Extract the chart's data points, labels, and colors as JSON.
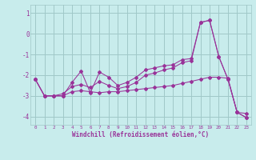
{
  "xlabel": "Windchill (Refroidissement éolien,°C)",
  "background_color": "#c8ecec",
  "grid_color": "#a0c8c8",
  "line_color": "#993399",
  "xlim": [
    -0.5,
    23.5
  ],
  "ylim": [
    -4.4,
    1.4
  ],
  "yticks": [
    1,
    0,
    -1,
    -2,
    -3,
    -4
  ],
  "xticks": [
    0,
    1,
    2,
    3,
    4,
    5,
    6,
    7,
    8,
    9,
    10,
    11,
    12,
    13,
    14,
    15,
    16,
    17,
    18,
    19,
    20,
    21,
    22,
    23
  ],
  "series1": [
    [
      0,
      -2.2
    ],
    [
      1,
      -3.0
    ],
    [
      2,
      -3.0
    ],
    [
      3,
      -3.0
    ],
    [
      4,
      -2.35
    ],
    [
      5,
      -1.8
    ],
    [
      6,
      -2.85
    ],
    [
      7,
      -1.85
    ],
    [
      8,
      -2.1
    ],
    [
      9,
      -2.5
    ],
    [
      10,
      -2.35
    ],
    [
      11,
      -2.1
    ],
    [
      12,
      -1.75
    ],
    [
      13,
      -1.65
    ],
    [
      14,
      -1.55
    ],
    [
      15,
      -1.5
    ],
    [
      16,
      -1.25
    ],
    [
      17,
      -1.2
    ],
    [
      18,
      0.55
    ],
    [
      19,
      0.65
    ],
    [
      20,
      -1.1
    ],
    [
      21,
      -2.2
    ],
    [
      22,
      -3.8
    ],
    [
      23,
      -3.85
    ]
  ],
  "series2": [
    [
      0,
      -2.2
    ],
    [
      1,
      -3.0
    ],
    [
      2,
      -3.0
    ],
    [
      3,
      -3.0
    ],
    [
      4,
      -2.8
    ],
    [
      5,
      -2.75
    ],
    [
      6,
      -2.8
    ],
    [
      7,
      -2.85
    ],
    [
      8,
      -2.8
    ],
    [
      9,
      -2.8
    ],
    [
      10,
      -2.75
    ],
    [
      11,
      -2.7
    ],
    [
      12,
      -2.65
    ],
    [
      13,
      -2.6
    ],
    [
      14,
      -2.55
    ],
    [
      15,
      -2.5
    ],
    [
      16,
      -2.4
    ],
    [
      17,
      -2.3
    ],
    [
      18,
      -2.2
    ],
    [
      19,
      -2.1
    ],
    [
      20,
      -2.1
    ],
    [
      21,
      -2.15
    ],
    [
      22,
      -3.8
    ],
    [
      23,
      -4.05
    ]
  ],
  "series3": [
    [
      0,
      -2.2
    ],
    [
      1,
      -3.0
    ],
    [
      2,
      -3.0
    ],
    [
      3,
      -2.9
    ],
    [
      4,
      -2.55
    ],
    [
      5,
      -2.45
    ],
    [
      6,
      -2.6
    ],
    [
      7,
      -2.3
    ],
    [
      8,
      -2.5
    ],
    [
      9,
      -2.65
    ],
    [
      10,
      -2.55
    ],
    [
      11,
      -2.35
    ],
    [
      12,
      -2.0
    ],
    [
      13,
      -1.9
    ],
    [
      14,
      -1.75
    ],
    [
      15,
      -1.65
    ],
    [
      16,
      -1.4
    ],
    [
      17,
      -1.3
    ],
    [
      18,
      0.55
    ],
    [
      19,
      0.65
    ],
    [
      20,
      -1.1
    ],
    [
      21,
      -2.2
    ],
    [
      22,
      -3.8
    ],
    [
      23,
      -4.05
    ]
  ]
}
